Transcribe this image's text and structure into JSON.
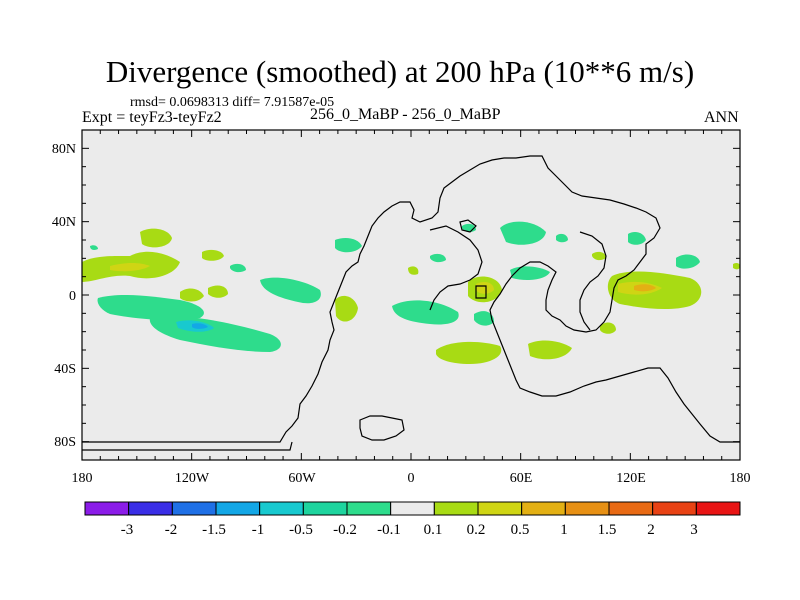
{
  "header": {
    "title": "Divergence (smoothed) at 200 hPa (10**6 m/s)",
    "stats": "rmsd= 0.0698313 diff= 7.91587e-05",
    "expt": "Expt = teyFz3-teyFz2",
    "cases": "256_0_MaBP - 256_0_MaBP",
    "season": "ANN"
  },
  "axes": {
    "lat_labels": [
      "80N",
      "40N",
      "0",
      "40S",
      "80S"
    ],
    "lon_labels": [
      "180",
      "120W",
      "60W",
      "0",
      "60E",
      "120E",
      "180"
    ]
  },
  "colorbar": {
    "colors": [
      "#8b1ce8",
      "#3a2ee6",
      "#1f70e6",
      "#13a7e6",
      "#18c9cf",
      "#1ed49e",
      "#2edc8c",
      "#ebebeb",
      "#a8db14",
      "#cfd514",
      "#e3b014",
      "#e79014",
      "#e86a14",
      "#e84214",
      "#e81414"
    ],
    "labels": [
      "-3",
      "-2",
      "-1.5",
      "-1",
      "-0.5",
      "-0.2",
      "-0.1",
      "0.1",
      "0.2",
      "0.5",
      "1",
      "1.5",
      "2",
      "3"
    ]
  },
  "map": {
    "background": "#ebebeb",
    "positive_color": "#a8db14",
    "positive_strong_color": "#cfd514",
    "orange_color": "#e3b014",
    "negative_color": "#2edc8c",
    "negative_strong_color": "#18c9cf",
    "cyan_color": "#13a7e6"
  }
}
